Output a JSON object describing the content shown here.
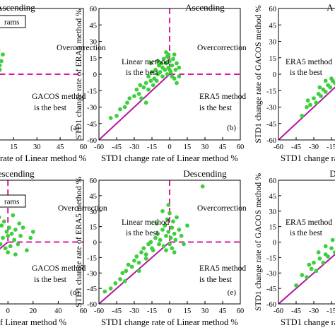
{
  "figure": {
    "colors": {
      "points": "#3ecf3e",
      "line": "#b5179e",
      "dash": "#e0199e",
      "axis": "#000000"
    }
  },
  "chart_data": [
    {
      "id": "a",
      "type": "scatter",
      "title": "Ascending",
      "panel_label": "(a)",
      "xlabel_visible": "rate of Linear method %",
      "x_ticks_visible": [
        "15",
        "30",
        "45",
        "60"
      ],
      "legend_visible": "rams",
      "annotations": [
        "Overcorrection",
        "GACOS method",
        "is the best"
      ],
      "xlim": [
        -60,
        60
      ],
      "ylim": [
        -60,
        60
      ],
      "points": [
        [
          -10,
          -4
        ],
        [
          -8,
          6
        ],
        [
          -6,
          10
        ],
        [
          -5,
          2
        ],
        [
          -4,
          14
        ],
        [
          -3,
          8
        ],
        [
          -2,
          18
        ],
        [
          -1,
          4
        ],
        [
          0,
          12
        ],
        [
          1,
          20
        ],
        [
          2,
          6
        ],
        [
          3,
          16
        ],
        [
          4,
          10
        ],
        [
          5,
          22
        ],
        [
          6,
          4
        ],
        [
          7,
          12
        ],
        [
          8,
          18
        ],
        [
          -12,
          -8
        ],
        [
          -7,
          -2
        ],
        [
          -3,
          -6
        ],
        [
          0,
          0
        ],
        [
          2,
          -2
        ],
        [
          4,
          2
        ],
        [
          -9,
          10
        ],
        [
          -6,
          16
        ],
        [
          3,
          14
        ],
        [
          6,
          8
        ],
        [
          -2,
          2
        ],
        [
          1,
          8
        ],
        [
          5,
          12
        ]
      ]
    },
    {
      "id": "b",
      "type": "scatter",
      "title": "Ascending",
      "panel_label": "(b)",
      "xlabel": "STD1 change rate of Linear method %",
      "ylabel": "STD1 change rate of ERA5 method %",
      "x_ticks": [
        "-60",
        "-45",
        "-30",
        "-15",
        "0",
        "15",
        "30",
        "45",
        "60"
      ],
      "y_ticks": [
        "60",
        "45",
        "30",
        "15",
        "0",
        "-15",
        "-30",
        "-45",
        "-60"
      ],
      "annotations": [
        "Linear method",
        "is the best",
        "Overcorrection",
        "ERA5 method",
        "is the best"
      ],
      "xlim": [
        -60,
        60
      ],
      "ylim": [
        -60,
        60
      ],
      "points": [
        [
          -50,
          -40
        ],
        [
          -45,
          -38
        ],
        [
          -42,
          -32
        ],
        [
          -38,
          -30
        ],
        [
          -36,
          -26
        ],
        [
          -34,
          -22
        ],
        [
          -30,
          -20
        ],
        [
          -28,
          -14
        ],
        [
          -26,
          -18
        ],
        [
          -25,
          -10
        ],
        [
          -22,
          -12
        ],
        [
          -20,
          -8
        ],
        [
          -18,
          -2
        ],
        [
          -16,
          -6
        ],
        [
          -15,
          2
        ],
        [
          -13,
          -4
        ],
        [
          -12,
          4
        ],
        [
          -10,
          0
        ],
        [
          -9,
          8
        ],
        [
          -8,
          2
        ],
        [
          -7,
          10
        ],
        [
          -6,
          6
        ],
        [
          -5,
          14
        ],
        [
          -4,
          4
        ],
        [
          -3,
          10
        ],
        [
          -2,
          16
        ],
        [
          -1,
          6
        ],
        [
          0,
          12
        ],
        [
          1,
          2
        ],
        [
          2,
          8
        ],
        [
          3,
          14
        ],
        [
          4,
          18
        ],
        [
          5,
          4
        ],
        [
          6,
          10
        ],
        [
          8,
          6
        ],
        [
          -20,
          -26
        ],
        [
          -24,
          -22
        ],
        [
          -18,
          -14
        ],
        [
          -14,
          -10
        ],
        [
          -11,
          -6
        ],
        [
          -6,
          -2
        ],
        [
          -2,
          0
        ],
        [
          0,
          4
        ],
        [
          2,
          -2
        ],
        [
          4,
          -4
        ],
        [
          6,
          -8
        ],
        [
          8,
          -2
        ],
        [
          -3,
          20
        ],
        [
          -1,
          18
        ],
        [
          -16,
          10
        ],
        [
          -10,
          12
        ]
      ]
    },
    {
      "id": "c",
      "type": "scatter",
      "title": "A",
      "panel_label": "",
      "xlabel_visible": "STD1 change rate of L",
      "ylabel": "STD1 change rate of GACOS method %",
      "y_ticks": [
        "60",
        "45",
        "30",
        "15",
        "0",
        "-15",
        "-30",
        "-45",
        "-60"
      ],
      "x_ticks_visible": [
        "-60",
        "-45",
        "-30",
        "-15"
      ],
      "annotations": [
        "ERA5 method",
        "is the best"
      ],
      "xlim": [
        -60,
        60
      ],
      "ylim": [
        -60,
        60
      ],
      "points": [
        [
          -40,
          -38
        ],
        [
          -36,
          -30
        ],
        [
          -33,
          -28
        ],
        [
          -30,
          -22
        ],
        [
          -28,
          -26
        ],
        [
          -26,
          -18
        ],
        [
          -24,
          -20
        ],
        [
          -22,
          -14
        ],
        [
          -20,
          -16
        ],
        [
          -18,
          -10
        ],
        [
          -16,
          -12
        ],
        [
          -14,
          -6
        ],
        [
          -12,
          -8
        ],
        [
          -10,
          -2
        ],
        [
          -8,
          -4
        ],
        [
          -6,
          2
        ],
        [
          -4,
          -2
        ],
        [
          -2,
          4
        ],
        [
          0,
          0
        ],
        [
          2,
          6
        ],
        [
          4,
          2
        ],
        [
          6,
          8
        ],
        [
          8,
          4
        ],
        [
          10,
          10
        ],
        [
          -25,
          -12
        ],
        [
          -15,
          -4
        ],
        [
          -5,
          6
        ],
        [
          5,
          12
        ],
        [
          -35,
          -24
        ],
        [
          -20,
          -6
        ]
      ]
    },
    {
      "id": "d",
      "type": "scatter",
      "title": "Descending",
      "panel_label": "(d)",
      "xlabel_visible": "f Linear method %",
      "x_ticks_visible": [
        "20",
        "0",
        "20",
        "40",
        "60"
      ],
      "legend_visible": "rams",
      "annotations": [
        "Overcorrection",
        "GACOS method",
        "is the best"
      ],
      "xlim": [
        -40,
        60
      ],
      "ylim": [
        -60,
        60
      ],
      "points": [
        [
          -20,
          -10
        ],
        [
          -15,
          5
        ],
        [
          -12,
          -4
        ],
        [
          -10,
          8
        ],
        [
          -8,
          12
        ],
        [
          -6,
          -2
        ],
        [
          -5,
          16
        ],
        [
          -4,
          4
        ],
        [
          -3,
          20
        ],
        [
          -2,
          -6
        ],
        [
          -1,
          10
        ],
        [
          0,
          6
        ],
        [
          1,
          14
        ],
        [
          2,
          -4
        ],
        [
          3,
          8
        ],
        [
          4,
          26
        ],
        [
          5,
          2
        ],
        [
          6,
          12
        ],
        [
          8,
          -2
        ],
        [
          10,
          6
        ],
        [
          12,
          14
        ],
        [
          15,
          -8
        ],
        [
          18,
          4
        ],
        [
          -18,
          2
        ],
        [
          -14,
          -8
        ],
        [
          0,
          -10
        ],
        [
          -7,
          24
        ],
        [
          9,
          18
        ],
        [
          20,
          10
        ],
        [
          6,
          -12
        ]
      ]
    },
    {
      "id": "e",
      "type": "scatter",
      "title": "Descending",
      "panel_label": "(e)",
      "xlabel": "STD1 change rate of Linear method %",
      "ylabel": "STD1 change rate of ERA5 method %",
      "x_ticks": [
        "-60",
        "-45",
        "-30",
        "-15",
        "0",
        "15",
        "30",
        "45",
        "60"
      ],
      "y_ticks": [
        "60",
        "45",
        "30",
        "15",
        "0",
        "-15",
        "-30",
        "-45",
        "-60"
      ],
      "annotations": [
        "Linear method",
        "is the best",
        "Overcorrection",
        "ERA5 method",
        "is the best"
      ],
      "xlim": [
        -60,
        60
      ],
      "ylim": [
        -60,
        60
      ],
      "points": [
        [
          -55,
          -48
        ],
        [
          -50,
          -45
        ],
        [
          -46,
          -40
        ],
        [
          -42,
          -36
        ],
        [
          -40,
          -30
        ],
        [
          -37,
          -28
        ],
        [
          -35,
          -22
        ],
        [
          -32,
          -24
        ],
        [
          -30,
          -18
        ],
        [
          -28,
          -14
        ],
        [
          -26,
          -20
        ],
        [
          -24,
          -10
        ],
        [
          -22,
          -6
        ],
        [
          -20,
          -12
        ],
        [
          -18,
          -2
        ],
        [
          -16,
          0
        ],
        [
          -14,
          -8
        ],
        [
          -12,
          4
        ],
        [
          -10,
          8
        ],
        [
          -8,
          2
        ],
        [
          -6,
          12
        ],
        [
          -5,
          -4
        ],
        [
          -4,
          16
        ],
        [
          -3,
          6
        ],
        [
          -2,
          22
        ],
        [
          -1,
          10
        ],
        [
          0,
          28
        ],
        [
          1,
          4
        ],
        [
          2,
          14
        ],
        [
          3,
          20
        ],
        [
          4,
          8
        ],
        [
          5,
          2
        ],
        [
          6,
          24
        ],
        [
          8,
          12
        ],
        [
          10,
          6
        ],
        [
          12,
          -2
        ],
        [
          15,
          16
        ],
        [
          28,
          54
        ],
        [
          -38,
          -38
        ],
        [
          -26,
          -28
        ],
        [
          -20,
          -16
        ],
        [
          -15,
          -6
        ],
        [
          -9,
          -2
        ],
        [
          -3,
          -8
        ],
        [
          0,
          -2
        ],
        [
          2,
          -6
        ],
        [
          4,
          -10
        ],
        [
          -6,
          30
        ],
        [
          -1,
          36
        ],
        [
          -11,
          18
        ]
      ]
    },
    {
      "id": "f",
      "type": "scatter",
      "title": "De",
      "panel_label": "",
      "xlabel_visible": "STD1 change rate of Li",
      "ylabel": "STD1 change rate of GACOS method %",
      "y_ticks": [
        "60",
        "45",
        "30",
        "15",
        "0",
        "-15",
        "-30",
        "-45",
        "-60"
      ],
      "x_ticks_visible": [
        "-60",
        "-45",
        "-30",
        "-15"
      ],
      "annotations": [
        "ERA5 method",
        "is the best"
      ],
      "xlim": [
        -60,
        60
      ],
      "ylim": [
        -60,
        60
      ],
      "points": [
        [
          -45,
          -42
        ],
        [
          -40,
          -32
        ],
        [
          -36,
          -34
        ],
        [
          -32,
          -26
        ],
        [
          -30,
          -20
        ],
        [
          -28,
          -28
        ],
        [
          -25,
          -16
        ],
        [
          -22,
          -20
        ],
        [
          -20,
          -12
        ],
        [
          -18,
          -14
        ],
        [
          -15,
          -6
        ],
        [
          -12,
          -10
        ],
        [
          -10,
          -2
        ],
        [
          -8,
          0
        ],
        [
          -6,
          4
        ],
        [
          -4,
          -4
        ],
        [
          -2,
          8
        ],
        [
          0,
          2
        ],
        [
          2,
          12
        ],
        [
          4,
          6
        ],
        [
          6,
          16
        ],
        [
          8,
          4
        ],
        [
          10,
          20
        ],
        [
          -26,
          -10
        ],
        [
          -14,
          2
        ],
        [
          -5,
          10
        ],
        [
          3,
          14
        ],
        [
          -34,
          -22
        ],
        [
          -20,
          -4
        ],
        [
          5,
          24
        ]
      ]
    }
  ]
}
